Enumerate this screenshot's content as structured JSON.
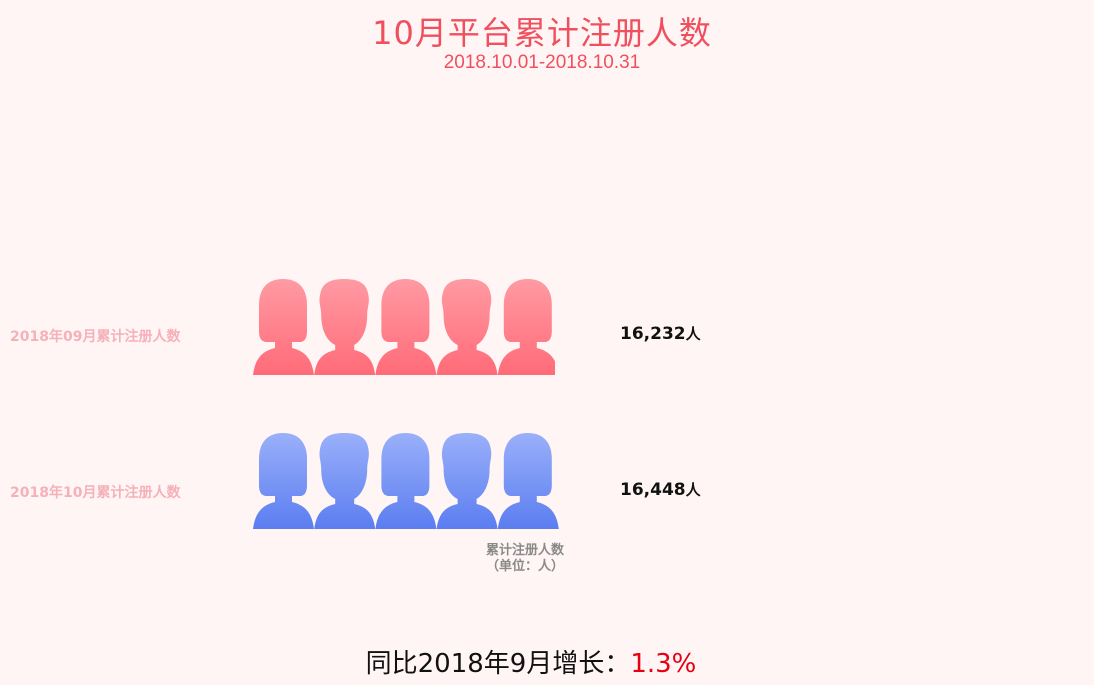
{
  "title": "10月平台累计注册人数",
  "subtitle": "2018.10.01-2018.10.31",
  "chart_data": {
    "type": "bar",
    "style": "pictogram",
    "orientation": "horizontal",
    "categories": [
      "2018年09月累计注册人数",
      "2018年10月累计注册人数"
    ],
    "values": [
      16232,
      16448
    ],
    "value_labels": [
      "16,232",
      "16,448"
    ],
    "unit": "人",
    "xlim": [
      0,
      16448
    ],
    "icon_count_at_max": 5,
    "icon_shapes": [
      "female",
      "male",
      "female",
      "male",
      "female"
    ],
    "colors": {
      "2018年09月累计注册人数": [
        "#ff6b78",
        "#ff9aa3"
      ],
      "2018年10月累计注册人数": [
        "#5b7df0",
        "#9ab0fa"
      ]
    },
    "axis_label_line1": "累计注册人数",
    "axis_label_line2": "（单位：人）",
    "grid": false
  },
  "footer": {
    "prefix": "同比2018年9月增长：",
    "percent": "1.3%"
  }
}
